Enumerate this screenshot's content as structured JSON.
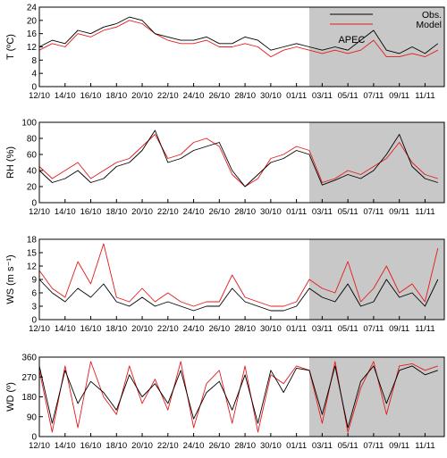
{
  "colors": {
    "obs": "#000000",
    "model": "#e41a1c",
    "apec_shade": "#c8c8c8"
  },
  "chart_data": [
    {
      "type": "line",
      "ylabel": "T (ºC)",
      "ylim": [
        0,
        24
      ],
      "yticks": [
        0,
        4,
        8,
        12,
        16,
        20,
        24
      ],
      "xticks": [
        "12/10",
        "14/10",
        "16/10",
        "18/10",
        "20/10",
        "22/10",
        "24/10",
        "26/10",
        "28/10",
        "30/10",
        "01/11",
        "03/11",
        "05/11",
        "07/11",
        "09/11",
        "11/11"
      ],
      "shade_x": [
        21.0,
        31.5
      ],
      "annotation": "APEC",
      "legend": [
        "Obs.",
        "Model"
      ],
      "legend_position": "top-right",
      "series": [
        {
          "name": "Obs.",
          "x": [
            0,
            1,
            2,
            3,
            4,
            5,
            6,
            7,
            8,
            9,
            10,
            11,
            12,
            13,
            14,
            15,
            16,
            17,
            18,
            19,
            20,
            21,
            22,
            23,
            24,
            25,
            26,
            27,
            28,
            29,
            30,
            31
          ],
          "values": [
            12,
            14,
            13,
            17,
            16,
            18,
            19,
            21,
            20,
            16,
            15,
            14,
            14,
            15,
            13,
            13,
            15,
            14,
            11,
            12,
            13,
            12,
            11,
            12,
            11,
            14,
            17,
            11,
            10,
            12,
            10,
            13
          ]
        },
        {
          "name": "Model",
          "x": [
            0,
            1,
            2,
            3,
            4,
            5,
            6,
            7,
            8,
            9,
            10,
            11,
            12,
            13,
            14,
            15,
            16,
            17,
            18,
            19,
            20,
            21,
            22,
            23,
            24,
            25,
            26,
            27,
            28,
            29,
            30,
            31
          ],
          "values": [
            11,
            13,
            12,
            16,
            15,
            17,
            18,
            20,
            19,
            16,
            14,
            13,
            13,
            14,
            12,
            12,
            13,
            12,
            9,
            11,
            12,
            11,
            10,
            11,
            10,
            11,
            14,
            9,
            9,
            10,
            9,
            11
          ]
        }
      ]
    },
    {
      "type": "line",
      "ylabel": "RH (%)",
      "ylim": [
        0,
        100
      ],
      "yticks": [
        0,
        20,
        40,
        60,
        80,
        100
      ],
      "xticks": [
        "12/10",
        "14/10",
        "16/10",
        "18/10",
        "20/10",
        "22/10",
        "24/10",
        "26/10",
        "28/10",
        "30/10",
        "01/11",
        "03/11",
        "05/11",
        "07/11",
        "09/11",
        "11/11"
      ],
      "shade_x": [
        21.0,
        31.5
      ],
      "series": [
        {
          "name": "Obs.",
          "x": [
            0,
            1,
            2,
            3,
            4,
            5,
            6,
            7,
            8,
            9,
            10,
            11,
            12,
            13,
            14,
            15,
            16,
            17,
            18,
            19,
            20,
            21,
            22,
            23,
            24,
            25,
            26,
            27,
            28,
            29,
            30,
            31
          ],
          "values": [
            40,
            25,
            30,
            40,
            25,
            30,
            45,
            50,
            65,
            90,
            50,
            55,
            65,
            70,
            75,
            40,
            20,
            35,
            50,
            55,
            65,
            60,
            22,
            28,
            35,
            30,
            40,
            60,
            85,
            45,
            30,
            25
          ]
        },
        {
          "name": "Model",
          "x": [
            0,
            1,
            2,
            3,
            4,
            5,
            6,
            7,
            8,
            9,
            10,
            11,
            12,
            13,
            14,
            15,
            16,
            17,
            18,
            19,
            20,
            21,
            22,
            23,
            24,
            25,
            26,
            27,
            28,
            29,
            30,
            31
          ],
          "values": [
            45,
            30,
            40,
            50,
            30,
            40,
            50,
            55,
            70,
            85,
            55,
            60,
            75,
            80,
            70,
            35,
            20,
            30,
            55,
            60,
            70,
            65,
            25,
            30,
            40,
            35,
            45,
            55,
            75,
            50,
            35,
            30
          ]
        }
      ]
    },
    {
      "type": "line",
      "ylabel": "WS (m s⁻¹)",
      "ylim": [
        0,
        18
      ],
      "yticks": [
        0,
        3,
        6,
        9,
        12,
        15,
        18
      ],
      "xticks": [
        "12/10",
        "14/10",
        "16/10",
        "18/10",
        "20/10",
        "22/10",
        "24/10",
        "26/10",
        "28/10",
        "30/10",
        "01/11",
        "03/11",
        "05/11",
        "07/11",
        "09/11",
        "11/11"
      ],
      "shade_x": [
        21.0,
        31.5
      ],
      "series": [
        {
          "name": "Obs.",
          "x": [
            0,
            1,
            2,
            3,
            4,
            5,
            6,
            7,
            8,
            9,
            10,
            11,
            12,
            13,
            14,
            15,
            16,
            17,
            18,
            19,
            20,
            21,
            22,
            23,
            24,
            25,
            26,
            27,
            28,
            29,
            30,
            31
          ],
          "values": [
            9,
            6,
            4,
            7,
            5,
            8,
            4,
            3,
            5,
            3,
            4,
            3,
            2,
            3,
            3,
            7,
            4,
            3,
            2,
            2,
            3,
            7,
            5,
            4,
            8,
            3,
            4,
            9,
            5,
            6,
            3,
            9
          ]
        },
        {
          "name": "Model",
          "x": [
            0,
            1,
            2,
            3,
            4,
            5,
            6,
            7,
            8,
            9,
            10,
            11,
            12,
            13,
            14,
            15,
            16,
            17,
            18,
            19,
            20,
            21,
            22,
            23,
            24,
            25,
            26,
            27,
            28,
            29,
            30,
            31
          ],
          "values": [
            11,
            7,
            5,
            13,
            8,
            17,
            5,
            4,
            7,
            4,
            6,
            4,
            3,
            4,
            4,
            10,
            5,
            4,
            3,
            3,
            4,
            9,
            7,
            6,
            13,
            4,
            7,
            12,
            6,
            8,
            4,
            16
          ]
        }
      ]
    },
    {
      "type": "line",
      "ylabel": "WD (º)",
      "ylim": [
        0,
        360
      ],
      "yticks": [
        0,
        90,
        180,
        270,
        360
      ],
      "xticks": [
        "12/10",
        "14/10",
        "16/10",
        "18/10",
        "20/10",
        "22/10",
        "24/10",
        "26/10",
        "28/10",
        "30/10",
        "01/11",
        "03/11",
        "05/11",
        "07/11",
        "09/11",
        "11/11"
      ],
      "shade_x": [
        21.0,
        31.5
      ],
      "series": [
        {
          "name": "Obs.",
          "x": [
            0,
            1,
            2,
            3,
            4,
            5,
            6,
            7,
            8,
            9,
            10,
            11,
            12,
            13,
            14,
            15,
            16,
            17,
            18,
            19,
            20,
            21,
            22,
            23,
            24,
            25,
            26,
            27,
            28,
            29,
            30,
            31
          ],
          "values": [
            320,
            60,
            300,
            150,
            250,
            200,
            120,
            280,
            180,
            240,
            150,
            300,
            80,
            200,
            250,
            120,
            280,
            60,
            300,
            200,
            310,
            300,
            100,
            320,
            40,
            250,
            320,
            150,
            300,
            320,
            280,
            300
          ]
        },
        {
          "name": "Model",
          "x": [
            0,
            1,
            2,
            3,
            4,
            5,
            6,
            7,
            8,
            9,
            10,
            11,
            12,
            13,
            14,
            15,
            16,
            17,
            18,
            19,
            20,
            21,
            22,
            23,
            24,
            25,
            26,
            27,
            28,
            29,
            30,
            31
          ],
          "values": [
            300,
            20,
            320,
            40,
            340,
            180,
            100,
            320,
            150,
            260,
            120,
            340,
            40,
            240,
            300,
            60,
            320,
            20,
            280,
            240,
            320,
            300,
            60,
            340,
            20,
            220,
            340,
            100,
            320,
            330,
            300,
            320
          ]
        }
      ]
    }
  ]
}
